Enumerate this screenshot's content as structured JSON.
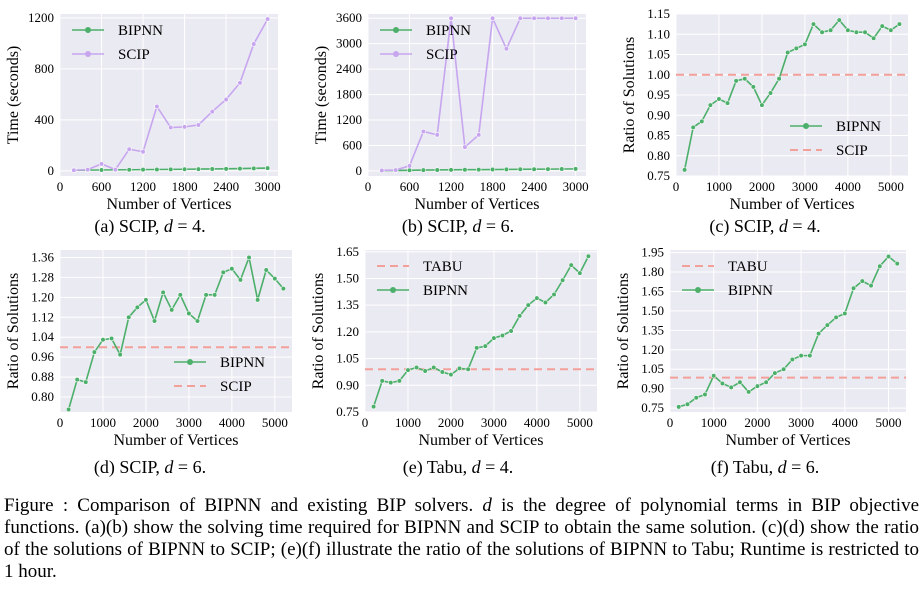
{
  "chart_data": [
    {
      "id": "a",
      "type": "line",
      "caption": "(a) SCIP, d = 4.",
      "caption_prefix": "(a) SCIP, ",
      "caption_suffix": " = 4.",
      "xlabel": "Number of Vertices",
      "ylabel": "Time (seconds)",
      "xlim": [
        0,
        3150
      ],
      "ylim": [
        -40,
        1230
      ],
      "xticks": [
        0,
        600,
        1200,
        1800,
        2400,
        3000
      ],
      "yticks": [
        0,
        400,
        800,
        1200
      ],
      "legend_loc": "upper-left",
      "legend_order": [
        "BIPNN",
        "SCIP"
      ],
      "series": [
        {
          "name": "BIPNN",
          "color": "#4caf6a",
          "style": "solid",
          "marker": true,
          "x": [
            200,
            400,
            600,
            800,
            1000,
            1200,
            1400,
            1600,
            1800,
            2000,
            2200,
            2400,
            2600,
            2800,
            3000
          ],
          "y": [
            5,
            6,
            7,
            8,
            9,
            10,
            11,
            12,
            13,
            14,
            15,
            16,
            18,
            20,
            22
          ]
        },
        {
          "name": "SCIP",
          "color": "#c7a6ef",
          "style": "solid",
          "marker": true,
          "x": [
            200,
            400,
            600,
            800,
            1000,
            1200,
            1400,
            1600,
            1800,
            2000,
            2200,
            2400,
            2600,
            2800,
            3000
          ],
          "y": [
            5,
            10,
            55,
            10,
            170,
            150,
            505,
            340,
            345,
            360,
            465,
            560,
            690,
            995,
            1190
          ]
        }
      ]
    },
    {
      "id": "b",
      "type": "line",
      "caption": "(b) SCIP, d = 6.",
      "caption_prefix": "(b) SCIP, ",
      "caption_suffix": " = 6.",
      "xlabel": "Number of Vertices",
      "ylabel": "Time (seconds)",
      "xlim": [
        0,
        3150
      ],
      "ylim": [
        -120,
        3700
      ],
      "xticks": [
        0,
        600,
        1200,
        1800,
        2400,
        3000
      ],
      "yticks": [
        0,
        600,
        1200,
        1800,
        2400,
        3000,
        3600
      ],
      "legend_loc": "upper-left",
      "legend_order": [
        "BIPNN",
        "SCIP"
      ],
      "series": [
        {
          "name": "BIPNN",
          "color": "#4caf6a",
          "style": "solid",
          "marker": true,
          "x": [
            200,
            400,
            600,
            800,
            1000,
            1200,
            1400,
            1600,
            1800,
            2000,
            2200,
            2400,
            2600,
            2800,
            3000
          ],
          "y": [
            10,
            12,
            15,
            20,
            22,
            25,
            28,
            30,
            32,
            35,
            38,
            40,
            42,
            45,
            48
          ]
        },
        {
          "name": "SCIP",
          "color": "#c7a6ef",
          "style": "solid",
          "marker": true,
          "x": [
            200,
            400,
            600,
            800,
            1000,
            1200,
            1400,
            1600,
            1800,
            2000,
            2200,
            2400,
            2600,
            2800,
            3000
          ],
          "y": [
            10,
            20,
            120,
            930,
            850,
            3600,
            560,
            850,
            3600,
            2880,
            3600,
            3600,
            3600,
            3600,
            3600
          ]
        }
      ]
    },
    {
      "id": "c",
      "type": "line",
      "caption": "(c) SCIP, d = 4.",
      "caption_prefix": "(c) SCIP, ",
      "caption_suffix": " = 4.",
      "xlabel": "Number of Vertices",
      "ylabel": "Ratio of Solutions",
      "xlim": [
        0,
        5400
      ],
      "ylim": [
        0.75,
        1.15
      ],
      "xticks": [
        0,
        1000,
        2000,
        3000,
        4000,
        5000
      ],
      "yticks": [
        0.75,
        0.8,
        0.85,
        0.9,
        0.95,
        1.0,
        1.05,
        1.1,
        1.15
      ],
      "ytick_labels": [
        "0.75",
        "0.80",
        "0.85",
        "0.90",
        "0.95",
        "1.00",
        "1.05",
        "1.10",
        "1.15"
      ],
      "legend_loc": "lower-right",
      "legend_order": [
        "BIPNN",
        "SCIP"
      ],
      "series": [
        {
          "name": "BIPNN",
          "color": "#4caf6a",
          "style": "solid",
          "marker": true,
          "x": [
            200,
            400,
            600,
            800,
            1000,
            1200,
            1400,
            1600,
            1800,
            2000,
            2200,
            2400,
            2600,
            2800,
            3000,
            3200,
            3400,
            3600,
            3800,
            4000,
            4200,
            4400,
            4600,
            4800,
            5000,
            5200
          ],
          "y": [
            0.765,
            0.87,
            0.885,
            0.925,
            0.94,
            0.93,
            0.985,
            0.99,
            0.97,
            0.925,
            0.955,
            0.99,
            1.055,
            1.065,
            1.075,
            1.125,
            1.105,
            1.11,
            1.135,
            1.11,
            1.105,
            1.105,
            1.09,
            1.12,
            1.11,
            1.125
          ]
        },
        {
          "name": "SCIP",
          "color": "#f4a09a",
          "style": "dashed",
          "marker": false,
          "x": [
            0,
            5400
          ],
          "y": [
            1.0,
            1.0
          ]
        }
      ]
    },
    {
      "id": "d",
      "type": "line",
      "caption": "(d) SCIP, d = 6.",
      "caption_prefix": "(d) SCIP, ",
      "caption_suffix": " = 6.",
      "xlabel": "Number of Vertices",
      "ylabel": "Ratio of Solutions",
      "xlim": [
        0,
        5400
      ],
      "ylim": [
        0.74,
        1.39
      ],
      "xticks": [
        0,
        1000,
        2000,
        3000,
        4000,
        5000
      ],
      "yticks": [
        0.8,
        0.88,
        0.96,
        1.04,
        1.12,
        1.2,
        1.28,
        1.36
      ],
      "ytick_labels": [
        "0.80",
        "0.88",
        "0.96",
        "1.04",
        "1.12",
        "1.20",
        "1.28",
        "1.36"
      ],
      "legend_loc": "lower-right",
      "legend_order": [
        "BIPNN",
        "SCIP"
      ],
      "series": [
        {
          "name": "BIPNN",
          "color": "#4caf6a",
          "style": "solid",
          "marker": true,
          "x": [
            200,
            400,
            600,
            800,
            1000,
            1200,
            1400,
            1600,
            1800,
            2000,
            2200,
            2400,
            2600,
            2800,
            3000,
            3200,
            3400,
            3600,
            3800,
            4000,
            4200,
            4400,
            4600,
            4800,
            5000,
            5200
          ],
          "y": [
            0.75,
            0.87,
            0.86,
            0.98,
            1.03,
            1.035,
            0.97,
            1.12,
            1.16,
            1.19,
            1.105,
            1.22,
            1.15,
            1.21,
            1.135,
            1.105,
            1.21,
            1.21,
            1.3,
            1.315,
            1.27,
            1.36,
            1.19,
            1.31,
            1.275,
            1.235
          ]
        },
        {
          "name": "SCIP",
          "color": "#f4a09a",
          "style": "dashed",
          "marker": false,
          "x": [
            0,
            5400
          ],
          "y": [
            1.0,
            1.0
          ]
        }
      ]
    },
    {
      "id": "e",
      "type": "line",
      "caption": "(e) Tabu, d = 4.",
      "caption_prefix": "(e) Tabu, ",
      "caption_suffix": " = 4.",
      "xlabel": "Number of Vertices",
      "ylabel": "Ratio of Solutions",
      "xlim": [
        0,
        5400
      ],
      "ylim": [
        0.75,
        1.66
      ],
      "xticks": [
        0,
        1000,
        2000,
        3000,
        4000,
        5000
      ],
      "yticks": [
        0.75,
        0.9,
        1.05,
        1.2,
        1.35,
        1.5,
        1.65
      ],
      "ytick_labels": [
        "0.75",
        "0.90",
        "1.05",
        "1.20",
        "1.35",
        "1.50",
        "1.65"
      ],
      "legend_loc": "upper-left",
      "legend_order": [
        "TABU",
        "BIPNN"
      ],
      "series": [
        {
          "name": "BIPNN",
          "color": "#4caf6a",
          "style": "solid",
          "marker": true,
          "x": [
            200,
            400,
            600,
            800,
            1000,
            1200,
            1400,
            1600,
            1800,
            2000,
            2200,
            2400,
            2600,
            2800,
            3000,
            3200,
            3400,
            3600,
            3800,
            4000,
            4200,
            4400,
            4600,
            4800,
            5000,
            5200
          ],
          "y": [
            0.78,
            0.925,
            0.915,
            0.925,
            0.985,
            1.0,
            0.98,
            1.0,
            0.975,
            0.96,
            0.995,
            0.99,
            1.11,
            1.12,
            1.165,
            1.18,
            1.205,
            1.29,
            1.35,
            1.39,
            1.365,
            1.41,
            1.49,
            1.575,
            1.53,
            1.625
          ]
        },
        {
          "name": "TABU",
          "color": "#f4a09a",
          "style": "dashed",
          "marker": false,
          "x": [
            0,
            5400
          ],
          "y": [
            0.99,
            0.99
          ]
        }
      ]
    },
    {
      "id": "f",
      "type": "line",
      "caption": "(f) Tabu, d = 6.",
      "caption_prefix": "(f) Tabu, ",
      "caption_suffix": " = 6.",
      "xlabel": "Number of Vertices",
      "ylabel": "Ratio of Solutions",
      "xlim": [
        0,
        5400
      ],
      "ylim": [
        0.72,
        1.97
      ],
      "xticks": [
        0,
        1000,
        2000,
        3000,
        4000,
        5000
      ],
      "yticks": [
        0.75,
        0.9,
        1.05,
        1.2,
        1.35,
        1.5,
        1.65,
        1.8,
        1.95
      ],
      "ytick_labels": [
        "0.75",
        "0.90",
        "1.05",
        "1.20",
        "1.35",
        "1.50",
        "1.65",
        "1.80",
        "1.95"
      ],
      "legend_loc": "upper-left",
      "legend_order": [
        "TABU",
        "BIPNN"
      ],
      "series": [
        {
          "name": "BIPNN",
          "color": "#4caf6a",
          "style": "solid",
          "marker": true,
          "x": [
            200,
            400,
            600,
            800,
            1000,
            1200,
            1400,
            1600,
            1800,
            2000,
            2200,
            2400,
            2600,
            2800,
            3000,
            3200,
            3400,
            3600,
            3800,
            4000,
            4200,
            4400,
            4600,
            4800,
            5000,
            5200
          ],
          "y": [
            0.76,
            0.78,
            0.83,
            0.855,
            1.0,
            0.94,
            0.91,
            0.95,
            0.875,
            0.92,
            0.95,
            1.02,
            1.05,
            1.125,
            1.155,
            1.155,
            1.325,
            1.39,
            1.45,
            1.48,
            1.675,
            1.73,
            1.695,
            1.845,
            1.92,
            1.865
          ]
        },
        {
          "name": "TABU",
          "color": "#f4a09a",
          "style": "dashed",
          "marker": false,
          "x": [
            0,
            5400
          ],
          "y": [
            0.985,
            0.985
          ]
        }
      ]
    }
  ],
  "caption_italic_symbol": "d",
  "figure_caption": {
    "label": "Figure",
    "number": "",
    "text_before_d": ": Comparison of BIPNN and existing BIP solvers. ",
    "symbol": "d",
    "text_after_d": " is the degree of polynomial terms in BIP objective functions. (a)(b) show the solving time required for BIPNN and SCIP to obtain the same solution. (c)(d) show the ratio of the solutions of BIPNN to SCIP; (e)(f) illustrate the ratio of the solutions of BIPNN to Tabu; Runtime is restricted to 1 hour."
  }
}
